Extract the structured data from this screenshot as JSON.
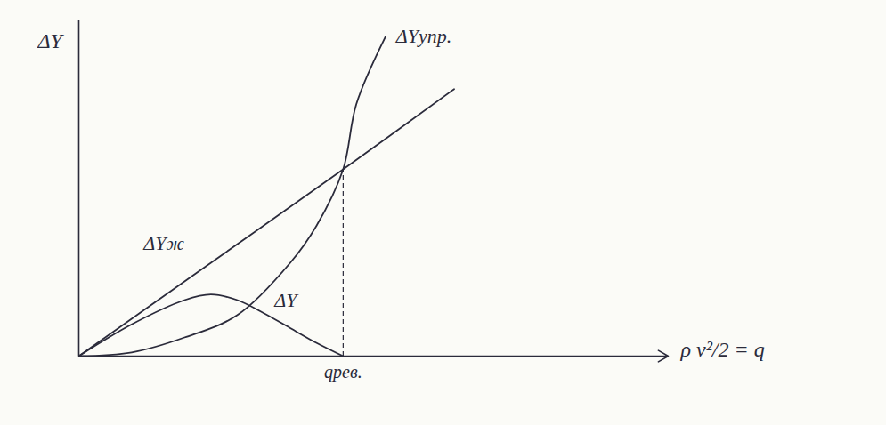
{
  "chart_data": {
    "type": "line",
    "x_label": "ρ v²/2 = q",
    "y_label": "ΔY",
    "xlim": [
      0,
      2.23
    ],
    "ylim": [
      0,
      1.8
    ],
    "xticks": [
      {
        "value": 1,
        "label": "qрев."
      }
    ],
    "yticks": [],
    "tick_labels": "x",
    "grid": false,
    "series": [
      {
        "name": "ΔYж",
        "color": "#2b2b3b",
        "x": [
          0,
          0.5,
          1,
          1.42
        ],
        "values": [
          0,
          0.5,
          1,
          1.43
        ]
      },
      {
        "name": "ΔYупр.",
        "color": "#2b2b3b",
        "x": [
          0,
          0.2,
          0.4,
          0.6,
          0.8,
          0.9,
          1,
          1.05,
          1.16
        ],
        "values": [
          0,
          0.02,
          0.1,
          0.22,
          0.5,
          0.7,
          1,
          1.35,
          1.71
        ]
      },
      {
        "name": "ΔY",
        "color": "#2b2b3b",
        "x": [
          0,
          0.2,
          0.4,
          0.5,
          0.6,
          0.7,
          0.8,
          0.9,
          1
        ],
        "values": [
          0,
          0.17,
          0.3,
          0.33,
          0.3,
          0.23,
          0.15,
          0.07,
          0
        ]
      }
    ]
  }
}
